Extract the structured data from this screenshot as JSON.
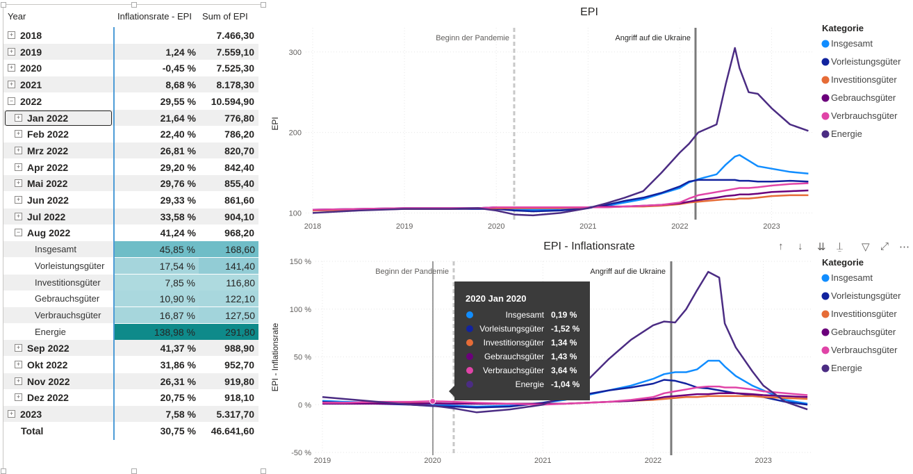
{
  "table": {
    "headers": {
      "year": "Year",
      "inflation": "Inflationsrate - EPI",
      "sum": "Sum of EPI"
    },
    "rows": [
      {
        "label": "2018",
        "expander": "⊞",
        "v1": "",
        "v2": "7.466,30"
      },
      {
        "label": "2019",
        "expander": "⊞",
        "v1": "1,24 %",
        "v2": "7.559,10"
      },
      {
        "label": "2020",
        "expander": "⊞",
        "v1": "-0,45 %",
        "v2": "7.525,30"
      },
      {
        "label": "2021",
        "expander": "⊞",
        "v1": "8,68 %",
        "v2": "8.178,30"
      },
      {
        "label": "2022",
        "expander": "⊟",
        "v1": "29,55 %",
        "v2": "10.594,90"
      },
      {
        "label": "Jan 2022",
        "expander": "⊞",
        "v1": "21,64 %",
        "v2": "776,80"
      },
      {
        "label": "Feb 2022",
        "expander": "⊞",
        "v1": "22,40 %",
        "v2": "786,20"
      },
      {
        "label": "Mrz 2022",
        "expander": "⊞",
        "v1": "26,81 %",
        "v2": "820,70"
      },
      {
        "label": "Apr 2022",
        "expander": "⊞",
        "v1": "29,20 %",
        "v2": "842,40"
      },
      {
        "label": "Mai 2022",
        "expander": "⊞",
        "v1": "29,76 %",
        "v2": "855,40"
      },
      {
        "label": "Jun 2022",
        "expander": "⊞",
        "v1": "29,33 %",
        "v2": "861,60"
      },
      {
        "label": "Jul 2022",
        "expander": "⊞",
        "v1": "33,58 %",
        "v2": "904,10"
      },
      {
        "label": "Aug 2022",
        "expander": "⊟",
        "v1": "41,24 %",
        "v2": "968,20"
      },
      {
        "label": "Insgesamt",
        "cat": true,
        "v1": "45,85 %",
        "v2": "168,60",
        "c1": "#6fbdc7",
        "c2": "#6fbdc7"
      },
      {
        "label": "Vorleistungsgüter",
        "cat": true,
        "v1": "17,54 %",
        "v2": "141,40",
        "c1": "#a5d5dc",
        "c2": "#92ccd5"
      },
      {
        "label": "Investitionsgüter",
        "cat": true,
        "v1": "7,85 %",
        "v2": "116,80",
        "c1": "#aedadf",
        "c2": "#aedadf"
      },
      {
        "label": "Gebrauchsgüter",
        "cat": true,
        "v1": "10,90 %",
        "v2": "122,10",
        "c1": "#aad8de",
        "c2": "#a8d7dd"
      },
      {
        "label": "Verbrauchsgüter",
        "cat": true,
        "v1": "16,87 %",
        "v2": "127,50",
        "c1": "#a6d6dc",
        "c2": "#a2d4db"
      },
      {
        "label": "Energie",
        "cat": true,
        "v1": "138,98 %",
        "v2": "291,80",
        "c1": "#0e8a8a",
        "c2": "#0e8a8a"
      },
      {
        "label": "Sep 2022",
        "expander": "⊞",
        "v1": "41,37 %",
        "v2": "988,90"
      },
      {
        "label": "Okt 2022",
        "expander": "⊞",
        "v1": "31,86 %",
        "v2": "952,70"
      },
      {
        "label": "Nov 2022",
        "expander": "⊞",
        "v1": "26,31 %",
        "v2": "919,80"
      },
      {
        "label": "Dez 2022",
        "expander": "⊞",
        "v1": "20,75 %",
        "v2": "918,10"
      },
      {
        "label": "2023",
        "expander": "⊞",
        "v1": "7,58 %",
        "v2": "5.317,70"
      },
      {
        "label": "Total",
        "expander": "",
        "v1": "30,75 %",
        "v2": "46.641,60"
      }
    ]
  },
  "legend": {
    "title": "Kategorie",
    "items": [
      {
        "name": "Insgesamt",
        "color": "#118DFF"
      },
      {
        "name": "Vorleistungsgüter",
        "color": "#12239E"
      },
      {
        "name": "Investitionsgüter",
        "color": "#E66C37"
      },
      {
        "name": "Gebrauchsgüter",
        "color": "#6B007B"
      },
      {
        "name": "Verbrauchsgüter",
        "color": "#E044A7"
      },
      {
        "name": "Energie",
        "color": "#4B2C83"
      }
    ]
  },
  "chart_data": [
    {
      "type": "line",
      "title": "EPI",
      "xlabel": "",
      "ylabel": "EPI",
      "x_ticks": [
        "2018",
        "2019",
        "2020",
        "2021",
        "2022",
        "2023"
      ],
      "y_ticks": [
        "100",
        "200",
        "300"
      ],
      "ylim": [
        90,
        330
      ],
      "annotations": [
        "Beginn der Pandemie",
        "Angriff auf die Ukraine"
      ],
      "x": [
        2018.0,
        2018.5,
        2019.0,
        2019.5,
        2019.8,
        2020.0,
        2020.2,
        2020.4,
        2020.7,
        2021.0,
        2021.2,
        2021.4,
        2021.6,
        2021.8,
        2022.0,
        2022.1,
        2022.2,
        2022.4,
        2022.5,
        2022.6,
        2022.65,
        2022.75,
        2022.85,
        2023.0,
        2023.2,
        2023.4
      ],
      "series": [
        {
          "name": "Insgesamt",
          "values": [
            104,
            105,
            106,
            106,
            106,
            107,
            105,
            104,
            105,
            107,
            109,
            113,
            117,
            124,
            131,
            138,
            142,
            148,
            160,
            170,
            172,
            165,
            158,
            155,
            151,
            149
          ]
        },
        {
          "name": "Vorleistungsgüter",
          "values": [
            103,
            104,
            105,
            105,
            105,
            105,
            103,
            102,
            103,
            106,
            110,
            115,
            119,
            125,
            133,
            139,
            141,
            141,
            141,
            141,
            140,
            140,
            139,
            139,
            140,
            139
          ]
        },
        {
          "name": "Investitionsgüter",
          "values": [
            103,
            104,
            105,
            105,
            106,
            106,
            106,
            106,
            106,
            107,
            107,
            108,
            108,
            109,
            111,
            113,
            114,
            116,
            117,
            117,
            118,
            118,
            119,
            121,
            122,
            122
          ]
        },
        {
          "name": "Gebrauchsgüter",
          "values": [
            104,
            105,
            106,
            106,
            106,
            107,
            107,
            107,
            107,
            107,
            108,
            108,
            109,
            110,
            112,
            114,
            116,
            119,
            121,
            122,
            123,
            123,
            124,
            126,
            127,
            128
          ]
        },
        {
          "name": "Verbrauchsgüter",
          "values": [
            104,
            105,
            106,
            106,
            106,
            107,
            107,
            107,
            107,
            107,
            107,
            108,
            109,
            110,
            113,
            118,
            122,
            126,
            128,
            130,
            131,
            131,
            132,
            134,
            136,
            137
          ]
        },
        {
          "name": "Energie",
          "values": [
            100,
            103,
            105,
            105,
            106,
            103,
            98,
            97,
            100,
            106,
            112,
            119,
            127,
            150,
            175,
            186,
            200,
            210,
            260,
            305,
            280,
            250,
            248,
            230,
            210,
            202
          ]
        }
      ]
    },
    {
      "type": "line",
      "title": "EPI - Inflationsrate",
      "xlabel": "",
      "ylabel": "EPI - Inflationsrate",
      "x_ticks": [
        "2019",
        "2020",
        "2021",
        "2022",
        "2023"
      ],
      "y_ticks": [
        "150 %",
        "100 %",
        "50 %",
        "0 %",
        "-50 %"
      ],
      "ylim": [
        -50,
        150
      ],
      "annotations": [
        "Beginn der Pandemie",
        "Angriff auf die Ukraine"
      ],
      "x": [
        2019.0,
        2019.2,
        2019.5,
        2019.8,
        2020.0,
        2020.2,
        2020.4,
        2020.7,
        2021.0,
        2021.2,
        2021.4,
        2021.6,
        2021.8,
        2022.0,
        2022.1,
        2022.2,
        2022.3,
        2022.4,
        2022.5,
        2022.6,
        2022.65,
        2022.75,
        2022.9,
        2023.0,
        2023.2,
        2023.4
      ],
      "series": [
        {
          "name": "Insgesamt",
          "values": [
            4,
            3,
            2,
            1,
            0.19,
            -1,
            -2,
            -1,
            2,
            5,
            10,
            15,
            20,
            27,
            32,
            34,
            34,
            37,
            46,
            46,
            40,
            30,
            20,
            15,
            5,
            1
          ]
        },
        {
          "name": "Vorleistungsgüter",
          "values": [
            3,
            2,
            1,
            0,
            -1.52,
            -2,
            -3,
            -2,
            2,
            6,
            11,
            15,
            18,
            22,
            26,
            25,
            22,
            18,
            17,
            15,
            14,
            12,
            10,
            8,
            3,
            0
          ]
        },
        {
          "name": "Investitionsgüter",
          "values": [
            2,
            2,
            2,
            1.5,
            1.34,
            1,
            1,
            1,
            1,
            1,
            2,
            3,
            4,
            5,
            6,
            7,
            8,
            8,
            9,
            9,
            9,
            9,
            9,
            8,
            7,
            6
          ]
        },
        {
          "name": "Gebrauchsgüter",
          "values": [
            1,
            1,
            1,
            1,
            1.43,
            1,
            1,
            1,
            1,
            1,
            2,
            3,
            4,
            6,
            8,
            9,
            10,
            11,
            11,
            12,
            12,
            12,
            11,
            10,
            9,
            8
          ]
        },
        {
          "name": "Verbrauchsgüter",
          "values": [
            2,
            2,
            3,
            3,
            3.64,
            3,
            2,
            1,
            0,
            1,
            2,
            3,
            5,
            8,
            12,
            14,
            16,
            18,
            19,
            19,
            18,
            18,
            16,
            14,
            12,
            10
          ]
        },
        {
          "name": "Energie",
          "values": [
            8,
            6,
            3,
            0,
            -1.04,
            -4,
            -8,
            -5,
            0,
            10,
            25,
            48,
            68,
            83,
            87,
            86,
            100,
            120,
            139,
            133,
            85,
            60,
            35,
            20,
            3,
            -5
          ]
        }
      ]
    }
  ],
  "chart1": {
    "title": "EPI",
    "ylabel": "EPI",
    "y_ticks": [
      "100",
      "200",
      "300"
    ],
    "x_ticks": [
      "2018",
      "2019",
      "2020",
      "2021",
      "2022",
      "2023"
    ],
    "annot_pandemic": "Beginn der Pandemie",
    "annot_ukraine": "Angriff auf die Ukraine"
  },
  "chart2": {
    "title": "EPI - Inflationsrate",
    "ylabel": "EPI - Inflationsrate",
    "y_ticks": [
      "150 %",
      "100 %",
      "50 %",
      "0 %",
      "-50 %"
    ],
    "x_ticks": [
      "2019",
      "2020",
      "2021",
      "2022",
      "2023"
    ],
    "annot_pandemic": "Beginn der Pandemie",
    "annot_ukraine": "Angriff auf die Ukraine"
  },
  "tooltip": {
    "title": "2020 Jan 2020",
    "rows": [
      {
        "name": "Insgesamt",
        "value": "0,19 %",
        "color": "#118DFF"
      },
      {
        "name": "Vorleistungsgüter",
        "value": "-1,52 %",
        "color": "#12239E"
      },
      {
        "name": "Investitionsgüter",
        "value": "1,34 %",
        "color": "#E66C37"
      },
      {
        "name": "Gebrauchsgüter",
        "value": "1,43 %",
        "color": "#6B007B"
      },
      {
        "name": "Verbrauchsgüter",
        "value": "3,64 %",
        "color": "#E044A7"
      },
      {
        "name": "Energie",
        "value": "-1,04 %",
        "color": "#4B2C83"
      }
    ]
  },
  "visual_header": {
    "icons": [
      "arrow-up-icon",
      "arrow-down-icon",
      "double-arrow-down-icon",
      "expand-hierarchy-icon",
      "filter-icon",
      "focus-mode-icon",
      "more-options-icon"
    ],
    "glyphs": [
      "↑",
      "↓",
      "⇊",
      "⍊",
      "▽",
      "⤢",
      "⋯"
    ]
  }
}
